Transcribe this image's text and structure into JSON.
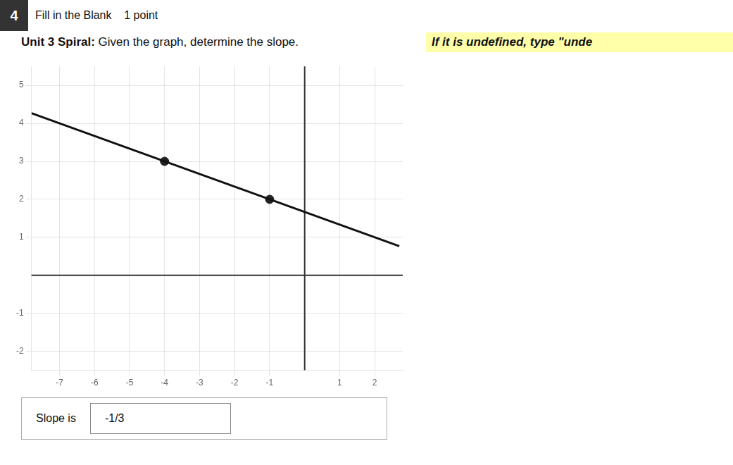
{
  "chart_data": {
    "type": "scatter",
    "annotations": [
      "4",
      "Fill in the Blank    1 point",
      "Unit 3 Spiral:",
      " Given the graph, determine the slope.",
      "If it is undefined, type \"unde",
      "Slope is",
      "-1/3"
    ],
    "series": [
      {
        "type": "line",
        "color": "#111111",
        "x": [
          -7.8,
          2.7
        ],
        "values": [
          4.26666666644,
          0.76666666679
        ]
      },
      {
        "type": "scatter",
        "color": "#222222",
        "x": [
          -4,
          -1
        ],
        "values": [
          3,
          2
        ]
      }
    ],
    "xlim": [
      -7.8,
      2.8
    ],
    "ylim": [
      -2.5,
      5.5
    ],
    "xticks": [
      -7,
      -6,
      -5,
      -4,
      -3,
      -2,
      -1,
      1,
      2
    ],
    "yticks": [
      -2,
      -1,
      1,
      2,
      3,
      4,
      5
    ],
    "grid": true
  }
}
